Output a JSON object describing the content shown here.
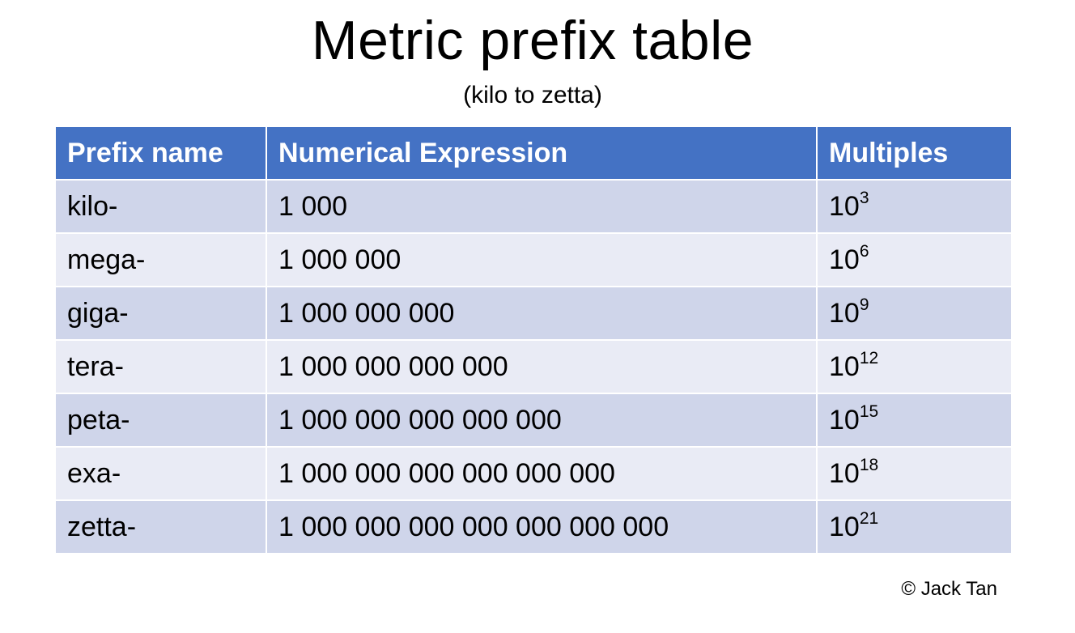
{
  "title": "Metric prefix table",
  "subtitle": "(kilo to zetta)",
  "table": {
    "headers": [
      "Prefix name",
      "Numerical Expression",
      "Multiples"
    ],
    "rows": [
      {
        "prefix": "kilo-",
        "expression": "1 000",
        "base": "10",
        "exponent": "3"
      },
      {
        "prefix": "mega-",
        "expression": "1 000 000",
        "base": "10",
        "exponent": "6"
      },
      {
        "prefix": "giga-",
        "expression": "1 000 000 000",
        "base": "10",
        "exponent": "9"
      },
      {
        "prefix": "tera-",
        "expression": "1 000 000 000 000",
        "base": "10",
        "exponent": "12"
      },
      {
        "prefix": "peta-",
        "expression": "1 000 000 000 000 000",
        "base": "10",
        "exponent": "15"
      },
      {
        "prefix": "exa-",
        "expression": "1 000 000 000 000 000 000",
        "base": "10",
        "exponent": "18"
      },
      {
        "prefix": "zetta-",
        "expression": "1 000 000 000 000 000 000 000",
        "base": "10",
        "exponent": "21"
      }
    ]
  },
  "colors": {
    "header": "#4472c4",
    "row_dark": "#cfd5ea",
    "row_light": "#e9ebf5"
  },
  "copyright": "© Jack Tan"
}
